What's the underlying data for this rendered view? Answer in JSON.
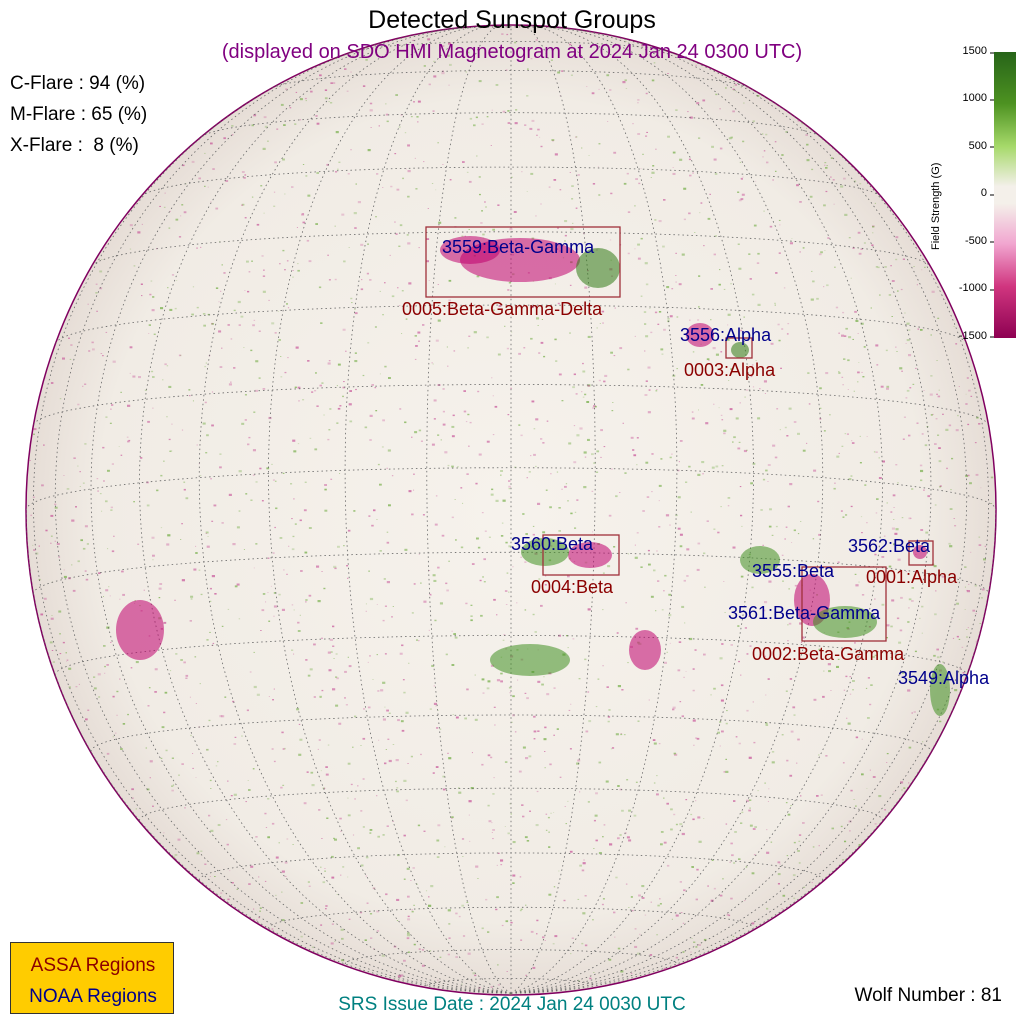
{
  "title": "Detected Sunspot Groups",
  "subtitle": "(displayed on SDO HMI Magnetogram at 2024 Jan 24 0300 UTC)",
  "flare_probabilities": [
    {
      "label": "C-Flare : 94 (%)"
    },
    {
      "label": "M-Flare : 65 (%)"
    },
    {
      "label": "X-Flare :  8 (%)"
    }
  ],
  "noaa_regions": [
    {
      "label": "3559:Beta-Gamma"
    },
    {
      "label": "3556:Alpha"
    },
    {
      "label": "3560:Beta"
    },
    {
      "label": "3562:Beta"
    },
    {
      "label": "3555:Beta"
    },
    {
      "label": "3561:Beta-Gamma"
    },
    {
      "label": "3549:Alpha"
    }
  ],
  "assa_regions": [
    {
      "label": "0005:Beta-Gamma-Delta"
    },
    {
      "label": "0003:Alpha"
    },
    {
      "label": "0004:Beta"
    },
    {
      "label": "0001:Alpha"
    },
    {
      "label": "0002:Beta-Gamma"
    }
  ],
  "colorbar": {
    "title": "Field Strength (G)",
    "ticks": [
      "1500",
      "1000",
      "500",
      "0",
      "-500",
      "-1000",
      "-1500"
    ],
    "positive_color": "#2e7d10",
    "negative_color": "#b0006a"
  },
  "legend": {
    "assa_label": "ASSA Regions",
    "noaa_label": "NOAA Regions",
    "background": "#ffcc00",
    "assa_color": "#8b0000",
    "noaa_color": "#00008b"
  },
  "srs_issue": "SRS Issue Date : 2024 Jan 24 0030 UTC",
  "wolf_number": "Wolf Number : 81"
}
